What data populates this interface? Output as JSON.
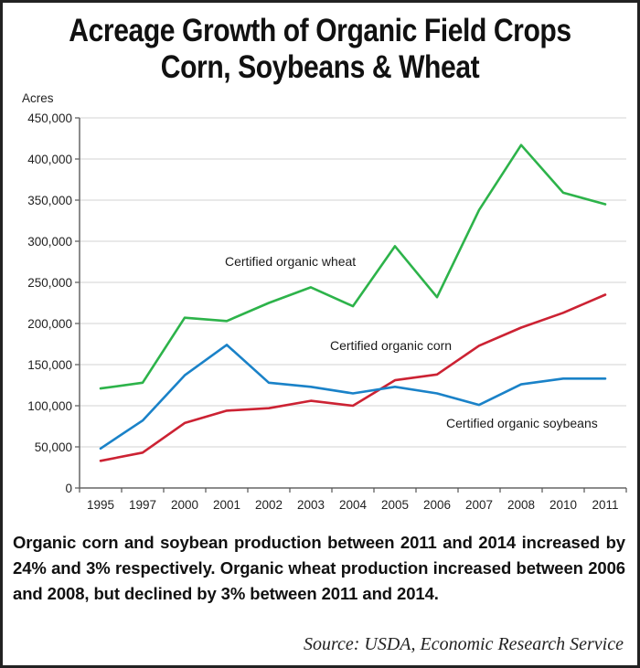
{
  "title_line1": "Acreage Growth of Organic Field Crops",
  "title_line2": "Corn, Soybeans & Wheat",
  "note": "Organic corn and soybean production between 2011 and 2014 increased by 24% and 3% respectively. Organic wheat production increased between 2006 and 2008, but declined by 3% between 2011 and 2014.",
  "source": "Source:  USDA, Economic Research Service",
  "chart_data": {
    "type": "line",
    "title": "Acreage Growth of Organic Field Crops — Corn, Soybeans & Wheat",
    "xlabel": "",
    "ylabel": "Acres",
    "ylim": [
      0,
      450000
    ],
    "yticks": [
      0,
      50000,
      100000,
      150000,
      200000,
      250000,
      300000,
      350000,
      400000,
      450000
    ],
    "ytick_labels": [
      "0",
      "50,000",
      "100,000",
      "150,000",
      "200,000",
      "250,000",
      "300,000",
      "350,000",
      "400,000",
      "450,000"
    ],
    "grid": true,
    "legend": "inline labels",
    "categories": [
      "1995",
      "1997",
      "2000",
      "2001",
      "2002",
      "2003",
      "2004",
      "2005",
      "2006",
      "2007",
      "2008",
      "2010",
      "2011"
    ],
    "series": [
      {
        "name": "Certified organic wheat",
        "color": "#2db34a",
        "values": [
          121000,
          128000,
          207000,
          203000,
          225000,
          244000,
          221000,
          294000,
          232000,
          338000,
          417000,
          359000,
          345000
        ]
      },
      {
        "name": "Certified organic corn",
        "color": "#cc2233",
        "values": [
          33000,
          43000,
          79000,
          94000,
          97000,
          106000,
          100000,
          131000,
          138000,
          173000,
          195000,
          213000,
          235000
        ]
      },
      {
        "name": "Certified organic soybeans",
        "color": "#1a82c8",
        "values": [
          48000,
          82000,
          137000,
          174000,
          128000,
          123000,
          115000,
          123000,
          115000,
          101000,
          126000,
          133000,
          133000
        ]
      }
    ]
  }
}
